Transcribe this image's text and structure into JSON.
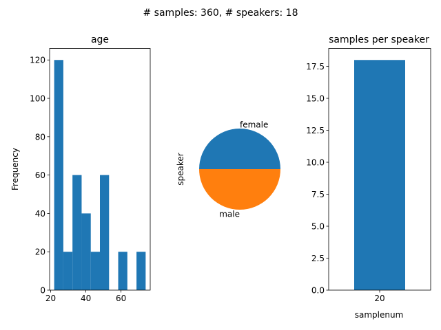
{
  "figure": {
    "suptitle": "# samples: 360, # speakers: 18"
  },
  "chart_data": [
    {
      "type": "bar",
      "title": "age",
      "xlabel": "",
      "ylabel": "Frequency",
      "bins": [
        {
          "x0": 22.0,
          "x1": 27.2,
          "value": 120
        },
        {
          "x0": 27.2,
          "x1": 32.4,
          "value": 20
        },
        {
          "x0": 32.4,
          "x1": 37.6,
          "value": 60
        },
        {
          "x0": 37.6,
          "x1": 42.8,
          "value": 40
        },
        {
          "x0": 42.8,
          "x1": 48.0,
          "value": 20
        },
        {
          "x0": 48.0,
          "x1": 53.2,
          "value": 60
        },
        {
          "x0": 53.2,
          "x1": 58.4,
          "value": 0
        },
        {
          "x0": 58.4,
          "x1": 63.6,
          "value": 20
        },
        {
          "x0": 63.6,
          "x1": 68.8,
          "value": 0
        },
        {
          "x0": 68.8,
          "x1": 74.0,
          "value": 20
        }
      ],
      "xlim": [
        19.4,
        76.6
      ],
      "ylim": [
        0,
        126
      ],
      "xticks": [
        20,
        40,
        60
      ],
      "yticks": [
        0,
        20,
        40,
        60,
        80,
        100,
        120
      ],
      "color": "#1f77b4"
    },
    {
      "type": "pie",
      "title": "",
      "ylabel": "speaker",
      "slices": [
        {
          "label": "female",
          "value": 9,
          "color": "#1f77b4"
        },
        {
          "label": "male",
          "value": 9,
          "color": "#ff7f0e"
        }
      ]
    },
    {
      "type": "bar",
      "title": "samples per speaker",
      "xlabel": "samplenum",
      "ylabel": "",
      "categories": [
        "20"
      ],
      "values": [
        18
      ],
      "ylim": [
        0,
        18.9
      ],
      "yticks": [
        "0.0",
        "2.5",
        "5.0",
        "7.5",
        "10.0",
        "12.5",
        "15.0",
        "17.5"
      ],
      "color": "#1f77b4"
    }
  ]
}
